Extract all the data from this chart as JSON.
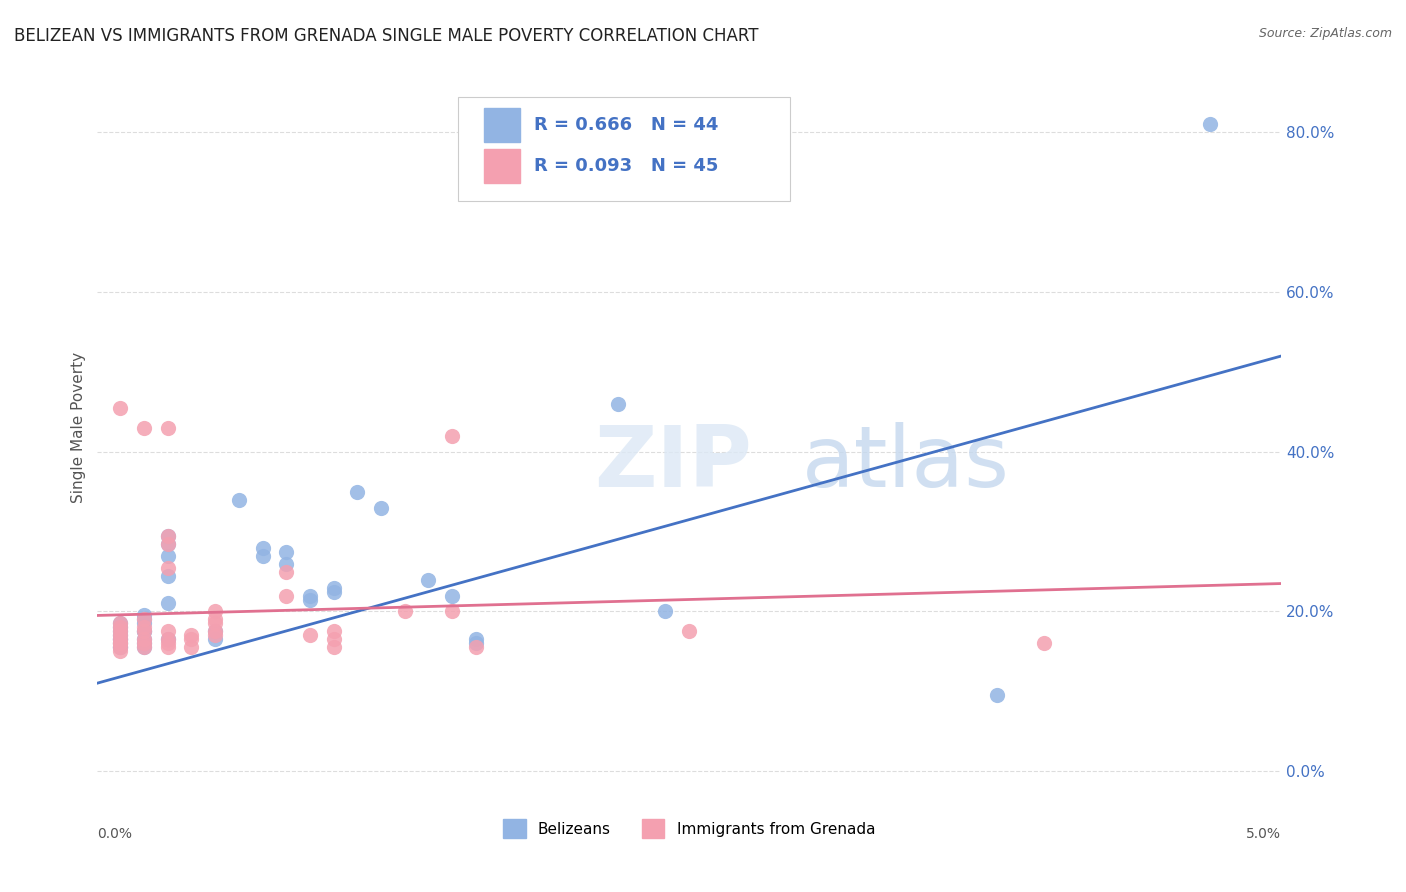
{
  "title": "BELIZEAN VS IMMIGRANTS FROM GRENADA SINGLE MALE POVERTY CORRELATION CHART",
  "source": "Source: ZipAtlas.com",
  "ylabel": "Single Male Poverty",
  "xlim": [
    0.0,
    0.05
  ],
  "ylim": [
    -0.02,
    0.88
  ],
  "ytick_values": [
    0.0,
    0.2,
    0.4,
    0.6,
    0.8
  ],
  "xtick_values": [
    0.0,
    0.01,
    0.02,
    0.03,
    0.04,
    0.05
  ],
  "blue_color": "#92b4e3",
  "pink_color": "#f4a0b0",
  "blue_line_color": "#4472c4",
  "pink_line_color": "#e07090",
  "R_blue": 0.666,
  "N_blue": 44,
  "R_pink": 0.093,
  "N_pink": 45,
  "legend_label_blue": "Belizeans",
  "legend_label_pink": "Immigrants from Grenada",
  "blue_scatter_x": [
    0.001,
    0.001,
    0.001,
    0.001,
    0.001,
    0.001,
    0.001,
    0.001,
    0.001,
    0.002,
    0.002,
    0.002,
    0.002,
    0.002,
    0.002,
    0.002,
    0.002,
    0.003,
    0.003,
    0.003,
    0.003,
    0.003,
    0.003,
    0.005,
    0.005,
    0.006,
    0.007,
    0.007,
    0.008,
    0.008,
    0.009,
    0.009,
    0.01,
    0.01,
    0.011,
    0.012,
    0.014,
    0.015,
    0.016,
    0.016,
    0.022,
    0.024,
    0.038,
    0.047
  ],
  "blue_scatter_y": [
    0.155,
    0.16,
    0.165,
    0.17,
    0.175,
    0.18,
    0.185,
    0.165,
    0.155,
    0.155,
    0.16,
    0.165,
    0.175,
    0.185,
    0.19,
    0.195,
    0.175,
    0.165,
    0.21,
    0.245,
    0.27,
    0.285,
    0.295,
    0.175,
    0.165,
    0.34,
    0.27,
    0.28,
    0.26,
    0.275,
    0.215,
    0.22,
    0.225,
    0.23,
    0.35,
    0.33,
    0.24,
    0.22,
    0.16,
    0.165,
    0.46,
    0.2,
    0.095,
    0.81
  ],
  "pink_scatter_x": [
    0.001,
    0.001,
    0.001,
    0.001,
    0.001,
    0.001,
    0.001,
    0.001,
    0.001,
    0.001,
    0.002,
    0.002,
    0.002,
    0.002,
    0.002,
    0.002,
    0.002,
    0.003,
    0.003,
    0.003,
    0.003,
    0.003,
    0.003,
    0.003,
    0.003,
    0.004,
    0.004,
    0.004,
    0.005,
    0.005,
    0.005,
    0.005,
    0.005,
    0.008,
    0.008,
    0.009,
    0.01,
    0.01,
    0.01,
    0.013,
    0.015,
    0.015,
    0.016,
    0.025,
    0.04
  ],
  "pink_scatter_y": [
    0.15,
    0.155,
    0.16,
    0.16,
    0.165,
    0.17,
    0.175,
    0.18,
    0.185,
    0.455,
    0.155,
    0.16,
    0.165,
    0.175,
    0.18,
    0.19,
    0.43,
    0.155,
    0.16,
    0.165,
    0.175,
    0.285,
    0.295,
    0.255,
    0.43,
    0.155,
    0.165,
    0.17,
    0.17,
    0.175,
    0.185,
    0.19,
    0.2,
    0.22,
    0.25,
    0.17,
    0.155,
    0.165,
    0.175,
    0.2,
    0.2,
    0.42,
    0.155,
    0.175,
    0.16
  ],
  "blue_line_x": [
    0.0,
    0.05
  ],
  "blue_line_y": [
    0.11,
    0.52
  ],
  "pink_line_x": [
    0.0,
    0.05
  ],
  "pink_line_y": [
    0.195,
    0.235
  ],
  "background_color": "#ffffff",
  "grid_color": "#dddddd"
}
